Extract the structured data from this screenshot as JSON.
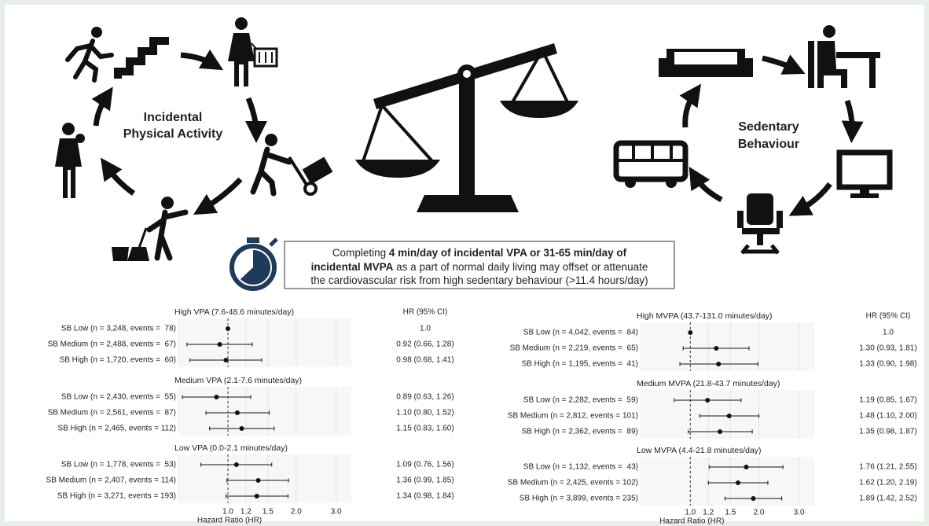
{
  "left_cycle": {
    "label_lines": [
      "Incidental",
      "Physical Activity"
    ]
  },
  "right_cycle": {
    "label_lines": [
      "Sedentary",
      "Behaviour"
    ]
  },
  "message": {
    "lines": [
      [
        "Completing ",
        "4 min/day of incidental VPA or 31-65 min/day of"
      ],
      [
        "incidental MVPA",
        " as a part of normal daily living may offset or attenuate"
      ],
      [
        "the cardiovascular risk from high sedentary behaviour (>11.4 hours/day)"
      ]
    ]
  },
  "chart_data": [
    {
      "type": "forest",
      "xlabel": "Hazard Ratio (HR)",
      "value_label_header": "HR (95% CI)",
      "log_scale": true,
      "grid": true,
      "reference_line": 1,
      "color": "#111111",
      "xlim": [
        0.6,
        3.5
      ],
      "xticks": [
        {
          "value": 1,
          "label": "1.0"
        },
        1.2,
        1.5,
        {
          "value": 2,
          "label": "2.0"
        },
        {
          "value": 3,
          "label": "3.0"
        }
      ],
      "groups": [
        {
          "title": "High VPA (7.6-48.6 minutes/day)",
          "categories": [
            "SB Low (n = 3,248, events =  78)",
            "SB Medium (n = 2,488, events =  67)",
            "SB High (n = 1,720, events =  60)"
          ],
          "values": [
            1,
            0.92,
            0.98
          ],
          "lower": [
            null,
            0.66,
            0.68
          ],
          "upper": [
            null,
            1.28,
            1.41
          ],
          "value_labels": [
            "1.0",
            "0.92 (0.66, 1.28)",
            "0.98 (0.68, 1.41)"
          ]
        },
        {
          "title": "Medium VPA (2.1-7.6 minutes/day)",
          "categories": [
            "SB Low (n = 2,430, events =  55)",
            "SB Medium (n = 2,561, events =  87)",
            "SB High (n = 2,465, events = 112)"
          ],
          "values": [
            0.89,
            1.1,
            1.15
          ],
          "lower": [
            0.63,
            0.8,
            0.83
          ],
          "upper": [
            1.26,
            1.52,
            1.6
          ],
          "value_labels": [
            "0.89 (0.63, 1.26)",
            "1.10 (0.80, 1.52)",
            "1.15 (0.83, 1.60)"
          ]
        },
        {
          "title": "Low VPA (0.0-2.1 minutes/day)",
          "categories": [
            "SB Low (n = 1,778, events =  53)",
            "SB Medium (n = 2,407, events = 114)",
            "SB High (n = 3,271, events = 193)"
          ],
          "values": [
            1.09,
            1.36,
            1.34
          ],
          "lower": [
            0.76,
            0.99,
            0.98
          ],
          "upper": [
            1.56,
            1.85,
            1.84
          ],
          "value_labels": [
            "1.09 (0.76, 1.56)",
            "1.36 (0.99, 1.85)",
            "1.34 (0.98, 1.84)"
          ]
        }
      ]
    },
    {
      "type": "forest",
      "xlabel": "Hazard Ratio (HR)",
      "value_label_header": "HR (95% CI)",
      "log_scale": true,
      "grid": true,
      "reference_line": 1,
      "color": "#111111",
      "xlim": [
        0.6,
        3.5
      ],
      "xticks": [
        {
          "value": 1,
          "label": "1.0"
        },
        1.2,
        1.5,
        {
          "value": 2,
          "label": "2.0"
        },
        {
          "value": 3,
          "label": "3.0"
        }
      ],
      "groups": [
        {
          "title": "High MVPA (43.7-131.0 minutes/day)",
          "categories": [
            "SB Low (n = 4,042, events =  84)",
            "SB Medium (n = 2,219, events =  65)",
            "SB High (n = 1,195, events =  41)"
          ],
          "values": [
            1,
            1.3,
            1.33
          ],
          "lower": [
            null,
            0.93,
            0.9
          ],
          "upper": [
            null,
            1.81,
            1.98
          ],
          "value_labels": [
            "1.0",
            "1.30 (0.93, 1.81)",
            "1.33 (0.90, 1.98)"
          ]
        },
        {
          "title": "Medium MVPA (21.8-43.7 minutes/day)",
          "categories": [
            "SB Low (n = 2,282, events =  59)",
            "SB Medium (n = 2,812, events = 101)",
            "SB High (n = 2,362, events =  89)"
          ],
          "values": [
            1.19,
            1.48,
            1.35
          ],
          "lower": [
            0.85,
            1.1,
            0.98
          ],
          "upper": [
            1.67,
            2.0,
            1.87
          ],
          "value_labels": [
            "1.19 (0.85, 1.67)",
            "1.48 (1.10, 2.00)",
            "1.35 (0.98, 1.87)"
          ]
        },
        {
          "title": "Low MVPA (4.4-21.8 minutes/day)",
          "categories": [
            "SB Low (n = 1,132, events =  43)",
            "SB Medium (n = 2,425, events = 102)",
            "SB High (n = 3,899, events = 235)"
          ],
          "values": [
            1.76,
            1.62,
            1.89
          ],
          "lower": [
            1.21,
            1.2,
            1.42
          ],
          "upper": [
            2.55,
            2.19,
            2.52
          ],
          "value_labels": [
            "1.76 (1.21, 2.55)",
            "1.62 (1.20, 2.19)",
            "1.89 (1.42, 2.52)"
          ]
        }
      ]
    }
  ]
}
